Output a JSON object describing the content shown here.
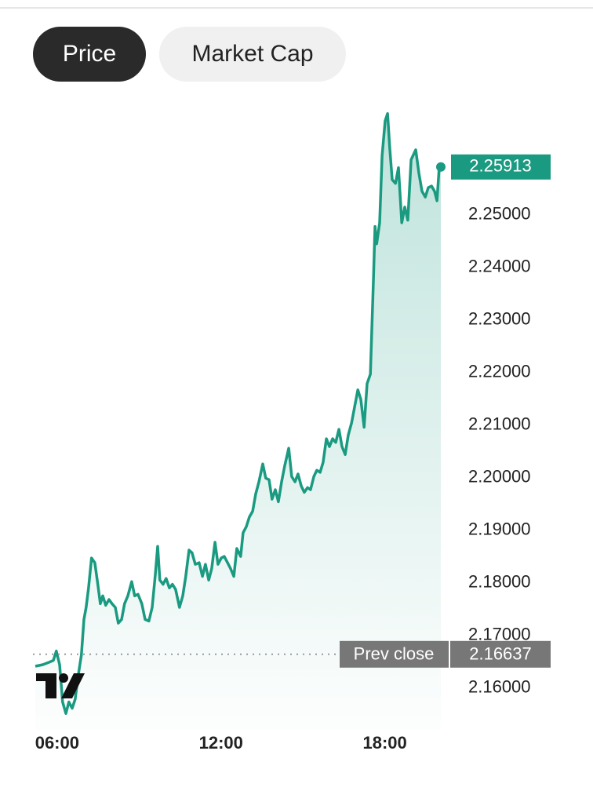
{
  "tabs": [
    "Price",
    "Market Cap"
  ],
  "chart_data": {
    "type": "area",
    "color": "#1a9a80",
    "x": [
      5.2,
      5.48,
      5.68,
      5.86,
      5.97,
      6.09,
      6.2,
      6.32,
      6.43,
      6.55,
      6.66,
      6.78,
      6.89,
      6.98,
      7.06,
      7.15,
      7.26,
      7.38,
      7.49,
      7.58,
      7.67,
      7.78,
      7.9,
      8.01,
      8.13,
      8.24,
      8.36,
      8.47,
      8.59,
      8.73,
      8.84,
      8.96,
      9.1,
      9.22,
      9.36,
      9.48,
      9.59,
      9.68,
      9.76,
      9.88,
      9.99,
      10.11,
      10.22,
      10.34,
      10.48,
      10.6,
      10.71,
      10.83,
      10.94,
      11.06,
      11.2,
      11.32,
      11.43,
      11.55,
      11.66,
      11.78,
      11.89,
      12.01,
      12.12,
      12.24,
      12.35,
      12.47,
      12.58,
      12.72,
      12.81,
      12.93,
      13.04,
      13.16,
      13.27,
      13.39,
      13.53,
      13.64,
      13.76,
      13.87,
      13.99,
      14.1,
      14.22,
      14.33,
      14.48,
      14.59,
      14.71,
      14.82,
      14.94,
      15.05,
      15.17,
      15.28,
      15.4,
      15.51,
      15.63,
      15.74,
      15.86,
      15.97,
      16.09,
      16.2,
      16.32,
      16.43,
      16.55,
      16.66,
      16.78,
      16.89,
      17.01,
      17.12,
      17.24,
      17.35,
      17.47,
      17.58,
      17.64,
      17.7,
      17.81,
      17.9,
      18.01,
      18.1,
      18.18,
      18.27,
      18.39,
      18.5,
      18.62,
      18.73,
      18.84,
      18.96,
      19.13,
      19.25,
      19.36,
      19.48,
      19.59,
      19.71,
      19.82,
      19.91,
      19.99,
      20.05
    ],
    "values": [
      2.1641,
      2.1644,
      2.1648,
      2.1652,
      2.167,
      2.1644,
      2.1573,
      2.1551,
      2.1573,
      2.1561,
      2.1578,
      2.1626,
      2.1663,
      2.173,
      2.1753,
      2.179,
      2.1847,
      2.1838,
      2.1797,
      2.176,
      2.1775,
      2.1757,
      2.1768,
      2.176,
      2.1753,
      2.1723,
      2.173,
      2.176,
      2.1775,
      2.1802,
      2.1775,
      2.1778,
      2.176,
      2.173,
      2.1727,
      2.1753,
      2.1812,
      2.1869,
      2.1805,
      2.1797,
      2.1808,
      2.179,
      2.1797,
      2.1787,
      2.1753,
      2.1775,
      2.1812,
      2.1862,
      2.1857,
      2.1835,
      2.1838,
      2.1812,
      2.1835,
      2.1805,
      2.1827,
      2.1877,
      2.1835,
      2.1847,
      2.185,
      2.1838,
      2.1827,
      2.1812,
      2.1865,
      2.185,
      2.1895,
      2.1907,
      2.1925,
      2.1936,
      2.1969,
      2.1992,
      2.2026,
      2.1999,
      2.1996,
      2.1959,
      2.1977,
      2.1954,
      2.1992,
      2.2022,
      2.2056,
      2.2002,
      2.1992,
      2.2007,
      2.1984,
      2.1972,
      2.1981,
      2.1977,
      2.2002,
      2.2014,
      2.201,
      2.2029,
      2.2074,
      2.2059,
      2.2074,
      2.2067,
      2.2092,
      2.2059,
      2.2044,
      2.2081,
      2.2104,
      2.2134,
      2.2167,
      2.2149,
      2.2096,
      2.2179,
      2.2197,
      2.2373,
      2.2478,
      2.2445,
      2.2485,
      2.2612,
      2.2679,
      2.2693,
      2.2627,
      2.2567,
      2.256,
      2.259,
      2.2485,
      2.2515,
      2.249,
      2.2605,
      2.2624,
      2.2579,
      2.2545,
      2.2534,
      2.2552,
      2.2555,
      2.2545,
      2.2527,
      2.259,
      2.25913
    ],
    "xlim": [
      5.2,
      20.05
    ],
    "xticks": [
      {
        "value": 6,
        "label": "06:00"
      },
      {
        "value": 12,
        "label": "12:00"
      },
      {
        "value": 18,
        "label": "18:00"
      }
    ],
    "ylim": [
      2.152,
      2.27
    ],
    "yticks": [
      {
        "value": 2.16,
        "label": "2.16000"
      },
      {
        "value": 2.17,
        "label": "2.17000"
      },
      {
        "value": 2.18,
        "label": "2.18000"
      },
      {
        "value": 2.19,
        "label": "2.19000"
      },
      {
        "value": 2.2,
        "label": "2.20000"
      },
      {
        "value": 2.21,
        "label": "2.21000"
      },
      {
        "value": 2.22,
        "label": "2.22000"
      },
      {
        "value": 2.23,
        "label": "2.23000"
      },
      {
        "value": 2.24,
        "label": "2.24000"
      },
      {
        "value": 2.25,
        "label": "2.25000"
      }
    ],
    "prev_close": {
      "label": "Prev close",
      "value": 2.16637
    }
  }
}
